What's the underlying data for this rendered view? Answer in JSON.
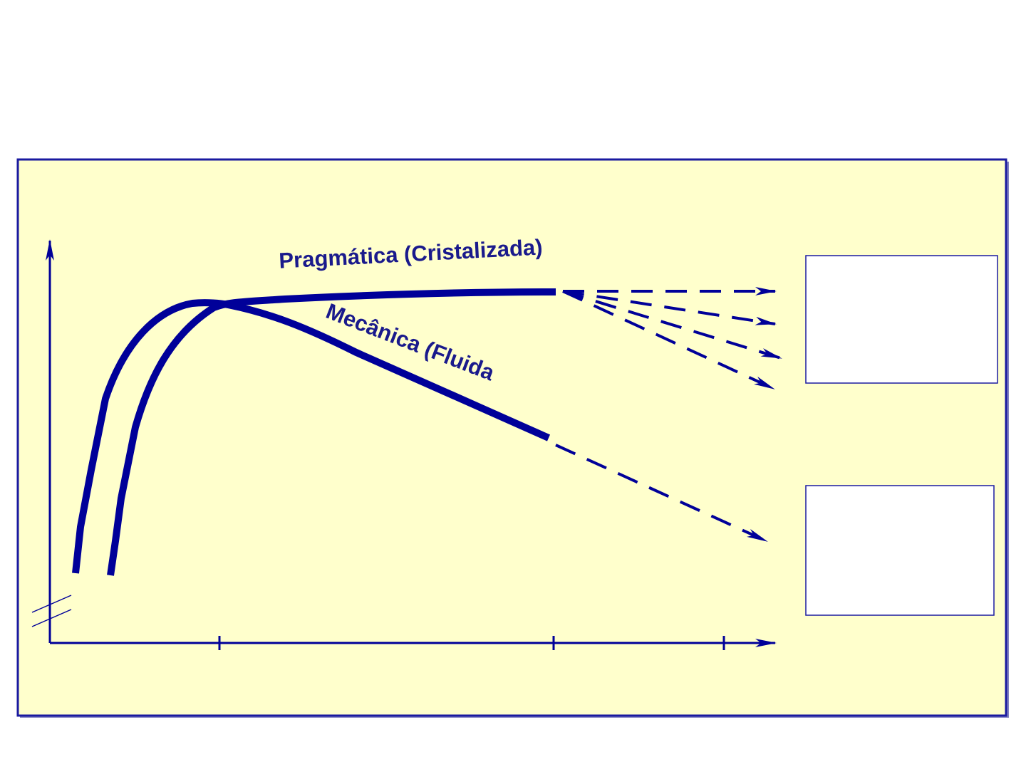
{
  "labels": {
    "crystallized": "Pragmática (Cristalizada)",
    "fluid": "Mecânica (Fluida"
  }
}
